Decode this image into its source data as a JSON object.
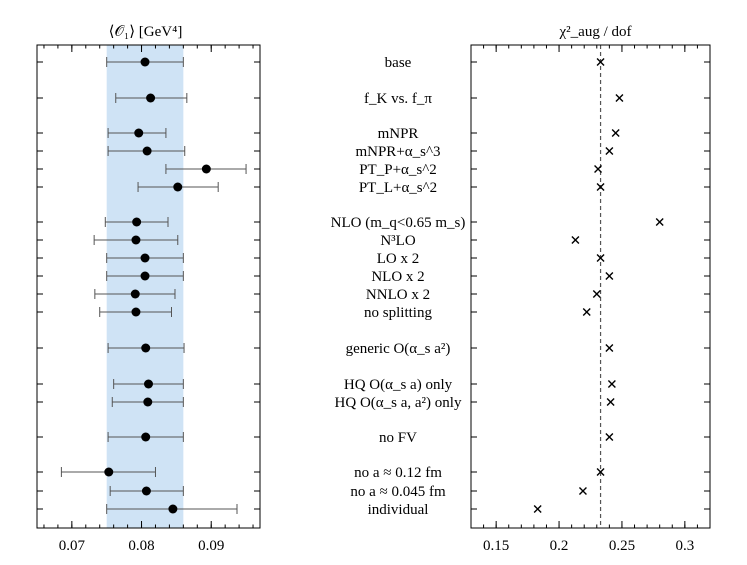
{
  "chart_data": [
    {
      "type": "scatter",
      "title": "⟨𝒪₁⟩  [GeV⁴]",
      "xlabel": "",
      "ylabel": "",
      "xlim": [
        0.065,
        0.097
      ],
      "xticks": [
        "0.07",
        "0.08",
        "0.09"
      ],
      "band": [
        0.075,
        0.086
      ],
      "markers": "filled-circle-with-error-bar",
      "grid": false,
      "rows": [
        {
          "label": "base",
          "y": 0.0805,
          "lo": 0.075,
          "hi": 0.086
        },
        {
          "label": "f_K vs. f_π",
          "y": 0.0813,
          "lo": 0.0763,
          "hi": 0.0865
        },
        {
          "label": "mNPR",
          "y": 0.0796,
          "lo": 0.0752,
          "hi": 0.0835
        },
        {
          "label": "mNPR+α_s^3",
          "y": 0.0808,
          "lo": 0.0752,
          "hi": 0.0862
        },
        {
          "label": "PT_P+α_s^2",
          "y": 0.0893,
          "lo": 0.0835,
          "hi": 0.095
        },
        {
          "label": "PT_L+α_s^2",
          "y": 0.0852,
          "lo": 0.0795,
          "hi": 0.091
        },
        {
          "label": "NLO (m_q<0.65 m_s)",
          "y": 0.0793,
          "lo": 0.0748,
          "hi": 0.0838
        },
        {
          "label": "N³LO",
          "y": 0.0792,
          "lo": 0.0732,
          "hi": 0.0852
        },
        {
          "label": "LO x 2",
          "y": 0.0805,
          "lo": 0.075,
          "hi": 0.086
        },
        {
          "label": "NLO x 2",
          "y": 0.0805,
          "lo": 0.075,
          "hi": 0.086
        },
        {
          "label": "NNLO x 2",
          "y": 0.0791,
          "lo": 0.0733,
          "hi": 0.0848
        },
        {
          "label": "no splitting",
          "y": 0.0792,
          "lo": 0.074,
          "hi": 0.0843
        },
        {
          "label": "generic O(α_s a²)",
          "y": 0.0806,
          "lo": 0.0752,
          "hi": 0.0861
        },
        {
          "label": "HQ O(α_s a) only",
          "y": 0.081,
          "lo": 0.076,
          "hi": 0.086
        },
        {
          "label": "HQ O(α_s a, a²) only",
          "y": 0.0809,
          "lo": 0.0758,
          "hi": 0.086
        },
        {
          "label": "no FV",
          "y": 0.0806,
          "lo": 0.0752,
          "hi": 0.086
        },
        {
          "label": "no a ≈ 0.12 fm",
          "y": 0.0753,
          "lo": 0.0685,
          "hi": 0.082
        },
        {
          "label": "no a ≈ 0.045 fm",
          "y": 0.0807,
          "lo": 0.0755,
          "hi": 0.086
        },
        {
          "label": "individual",
          "y": 0.0845,
          "lo": 0.075,
          "hi": 0.0937
        }
      ]
    },
    {
      "type": "scatter",
      "title": "χ²_aug / dof",
      "xlabel": "",
      "ylabel": "",
      "xlim": [
        0.13,
        0.32
      ],
      "xticks": [
        "0.15",
        "0.2",
        "0.25",
        "0.3"
      ],
      "reference_line": 0.233,
      "markers": "cross",
      "grid": false,
      "rows": [
        {
          "label": "base",
          "x": 0.233
        },
        {
          "label": "f_K vs. f_π",
          "x": 0.248
        },
        {
          "label": "mNPR",
          "x": 0.245
        },
        {
          "label": "mNPR+α_s^3",
          "x": 0.24
        },
        {
          "label": "PT_P+α_s^2",
          "x": 0.231
        },
        {
          "label": "PT_L+α_s^2",
          "x": 0.233
        },
        {
          "label": "NLO (m_q<0.65 m_s)",
          "x": 0.28
        },
        {
          "label": "N³LO",
          "x": 0.213
        },
        {
          "label": "LO x 2",
          "x": 0.233
        },
        {
          "label": "NLO x 2",
          "x": 0.24
        },
        {
          "label": "NNLO x 2",
          "x": 0.23
        },
        {
          "label": "no splitting",
          "x": 0.222
        },
        {
          "label": "generic O(α_s a²)",
          "x": 0.24
        },
        {
          "label": "HQ O(α_s a) only",
          "x": 0.242
        },
        {
          "label": "HQ O(α_s a, a²) only",
          "x": 0.241
        },
        {
          "label": "no FV",
          "x": 0.24
        },
        {
          "label": "no a ≈ 0.12 fm",
          "x": 0.233
        },
        {
          "label": "no a ≈ 0.045 fm",
          "x": 0.219
        },
        {
          "label": "individual",
          "x": 0.183
        }
      ]
    }
  ]
}
